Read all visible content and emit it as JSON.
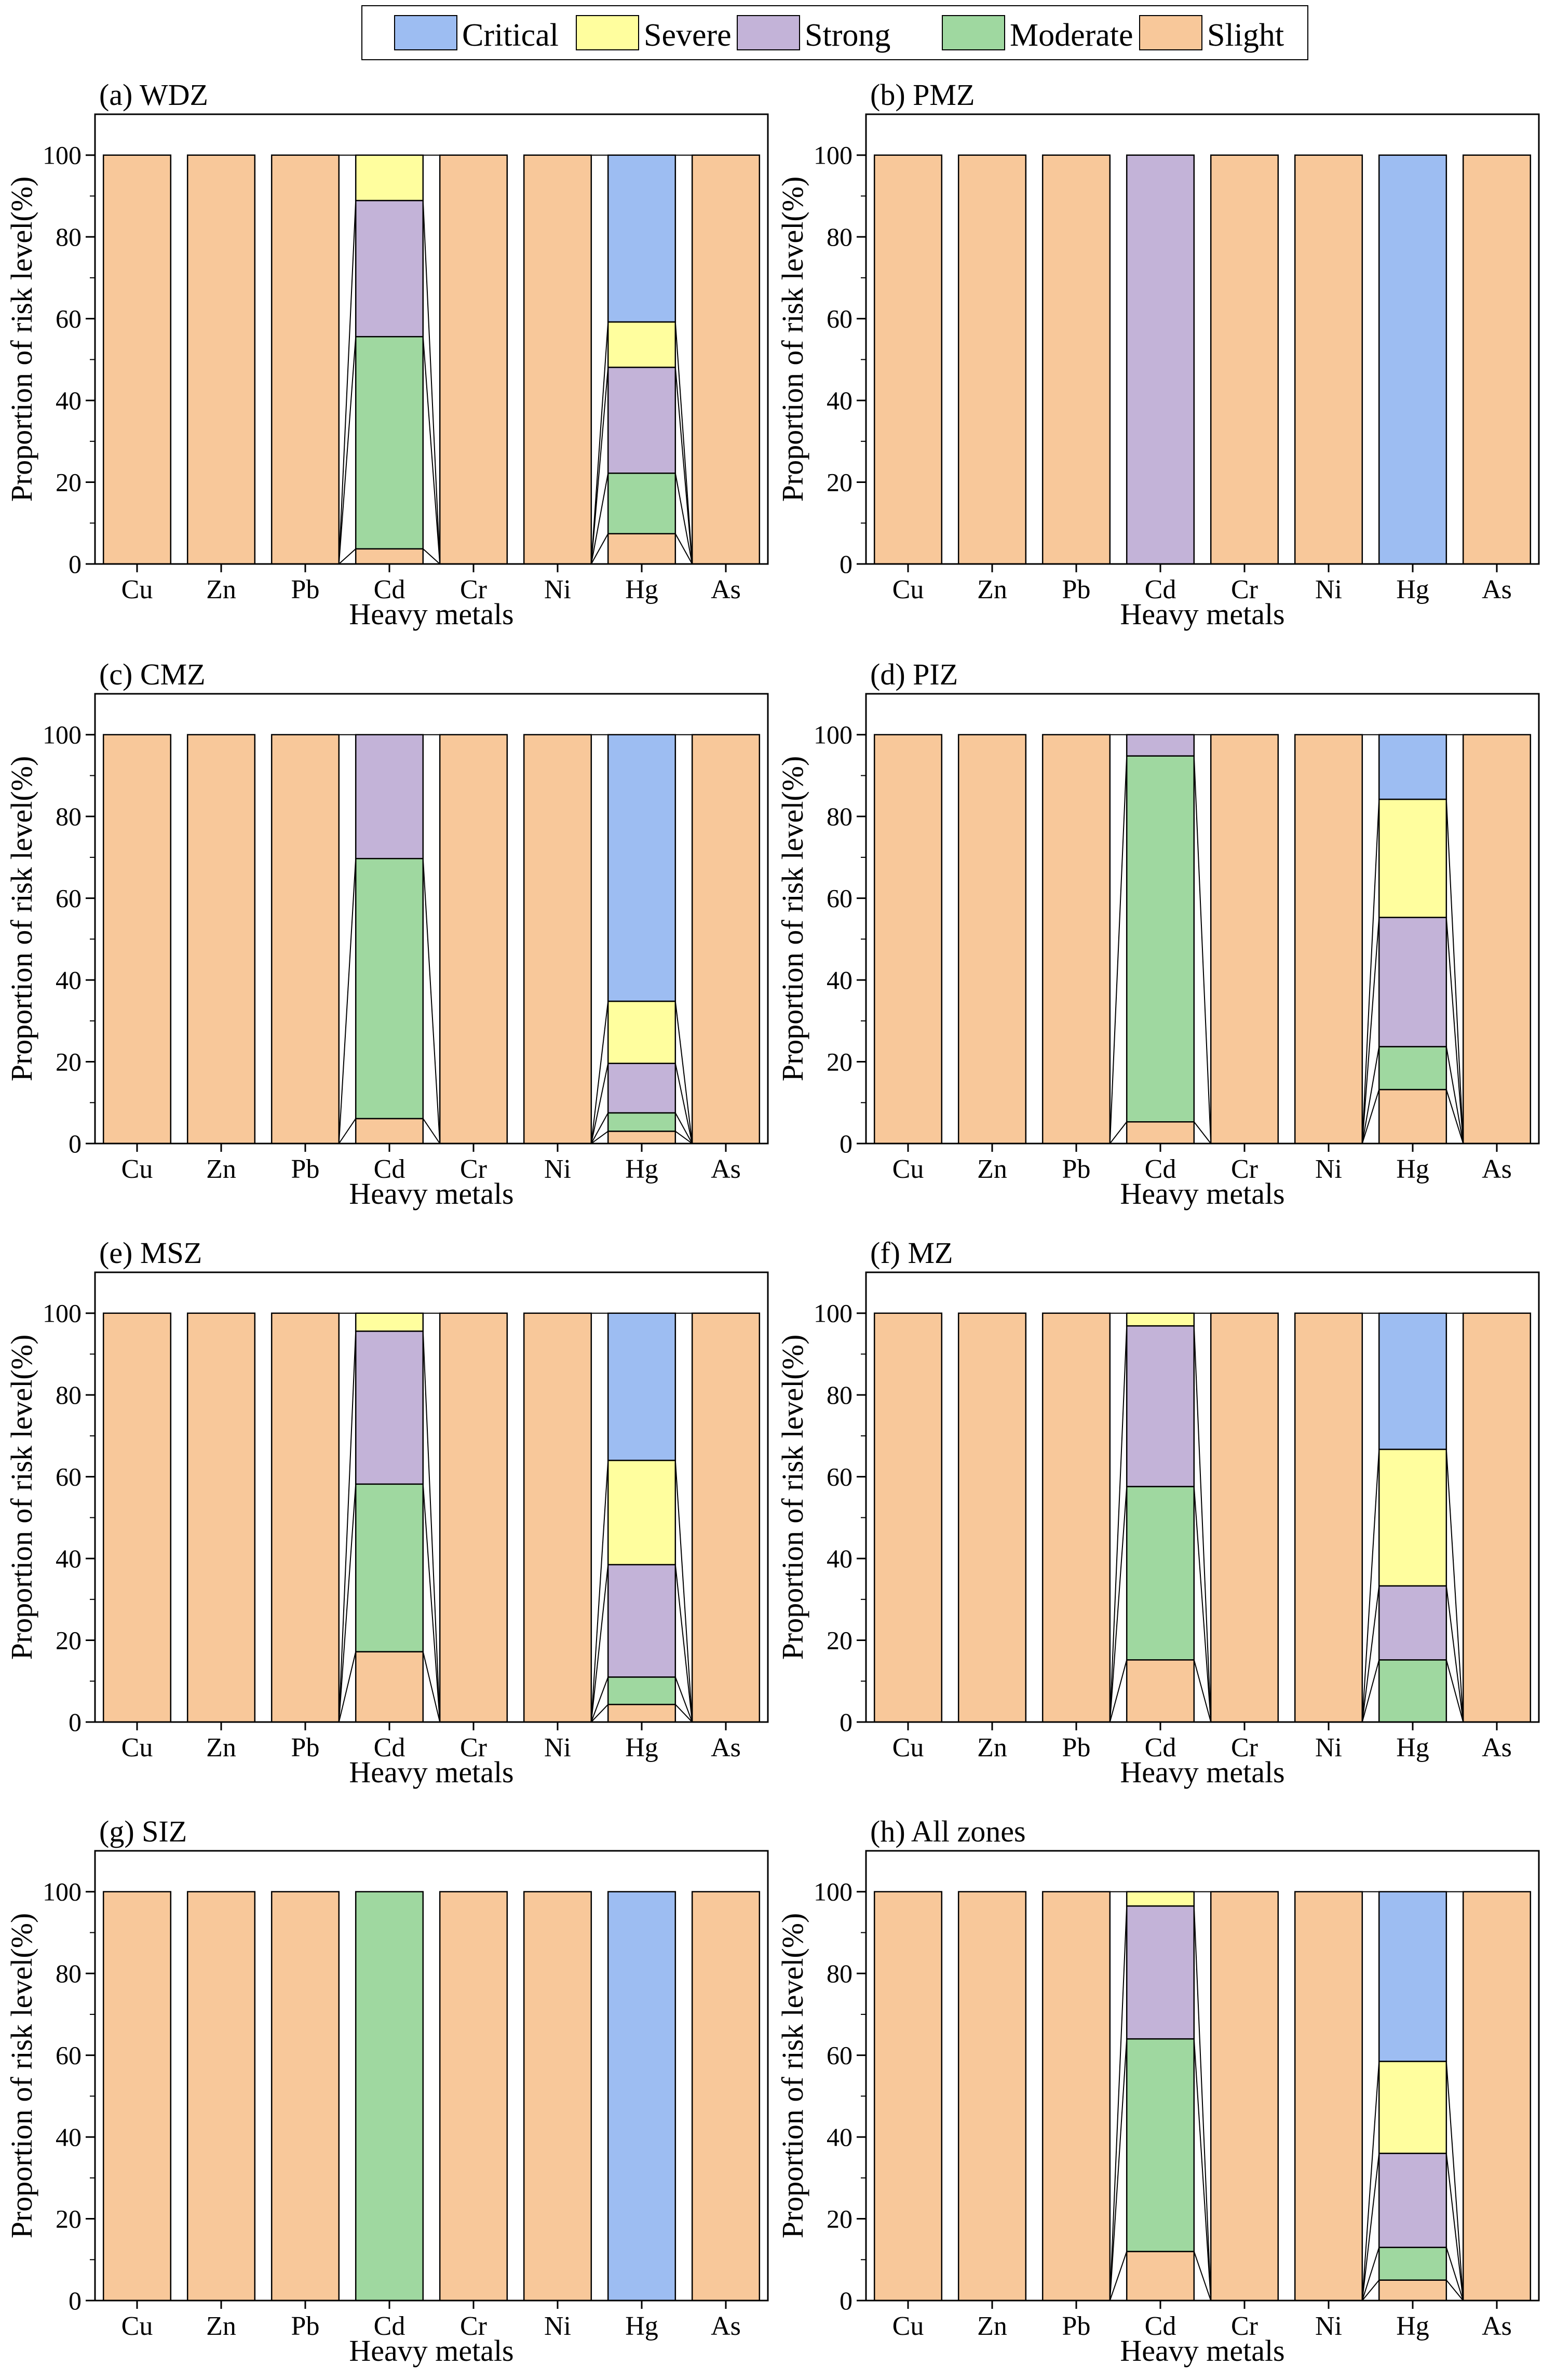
{
  "legend": [
    {
      "key": "Critical",
      "label": "Critical",
      "color": "#9DBDF2"
    },
    {
      "key": "Severe",
      "label": "Severe",
      "color": "#FFFE9E"
    },
    {
      "key": "Strong",
      "label": "Strong",
      "color": "#C3B3D8"
    },
    {
      "key": "Moderate",
      "label": "Moderate",
      "color": "#9FD8A0"
    },
    {
      "key": "Slight",
      "label": "Slight",
      "color": "#F8C89A"
    }
  ],
  "chart_data": [
    {
      "type": "bar",
      "stacked": true,
      "title": "(a) WDZ",
      "xlabel": "Heavy metals",
      "ylabel": "Proportion of risk level(%)",
      "ylim": [
        0,
        110
      ],
      "yticks": [
        0,
        20,
        40,
        60,
        80,
        100
      ],
      "categories": [
        "Cu",
        "Zn",
        "Pb",
        "Cd",
        "Cr",
        "Ni",
        "Hg",
        "As"
      ],
      "series": [
        {
          "name": "Slight",
          "values": [
            100,
            100,
            100,
            3.7,
            100,
            100,
            7.4,
            100
          ]
        },
        {
          "name": "Moderate",
          "values": [
            0,
            0,
            0,
            51.9,
            0,
            0,
            14.8,
            0
          ]
        },
        {
          "name": "Strong",
          "values": [
            0,
            0,
            0,
            33.3,
            0,
            0,
            25.9,
            0
          ]
        },
        {
          "name": "Severe",
          "values": [
            0,
            0,
            0,
            11.1,
            0,
            0,
            11.1,
            0
          ]
        },
        {
          "name": "Critical",
          "values": [
            0,
            0,
            0,
            0,
            0,
            0,
            40.8,
            0
          ]
        }
      ]
    },
    {
      "type": "bar",
      "stacked": true,
      "title": "(b) PMZ",
      "xlabel": "Heavy metals",
      "ylabel": "Proportion of risk level(%)",
      "ylim": [
        0,
        110
      ],
      "yticks": [
        0,
        20,
        40,
        60,
        80,
        100
      ],
      "categories": [
        "Cu",
        "Zn",
        "Pb",
        "Cd",
        "Cr",
        "Ni",
        "Hg",
        "As"
      ],
      "series": [
        {
          "name": "Slight",
          "values": [
            100,
            100,
            100,
            0,
            100,
            100,
            0,
            100
          ]
        },
        {
          "name": "Moderate",
          "values": [
            0,
            0,
            0,
            0,
            0,
            0,
            0,
            0
          ]
        },
        {
          "name": "Strong",
          "values": [
            0,
            0,
            0,
            100,
            0,
            0,
            0,
            0
          ]
        },
        {
          "name": "Severe",
          "values": [
            0,
            0,
            0,
            0,
            0,
            0,
            0,
            0
          ]
        },
        {
          "name": "Critical",
          "values": [
            0,
            0,
            0,
            0,
            0,
            0,
            100,
            0
          ]
        }
      ]
    },
    {
      "type": "bar",
      "stacked": true,
      "title": "(c) CMZ",
      "xlabel": "Heavy metals",
      "ylabel": "Proportion of risk level(%)",
      "ylim": [
        0,
        110
      ],
      "yticks": [
        0,
        20,
        40,
        60,
        80,
        100
      ],
      "categories": [
        "Cu",
        "Zn",
        "Pb",
        "Cd",
        "Cr",
        "Ni",
        "Hg",
        "As"
      ],
      "series": [
        {
          "name": "Slight",
          "values": [
            100,
            100,
            100,
            6.1,
            100,
            100,
            3.0,
            100
          ]
        },
        {
          "name": "Moderate",
          "values": [
            0,
            0,
            0,
            63.6,
            0,
            0,
            4.5,
            0
          ]
        },
        {
          "name": "Strong",
          "values": [
            0,
            0,
            0,
            30.3,
            0,
            0,
            12.1,
            0
          ]
        },
        {
          "name": "Severe",
          "values": [
            0,
            0,
            0,
            0,
            0,
            0,
            15.2,
            0
          ]
        },
        {
          "name": "Critical",
          "values": [
            0,
            0,
            0,
            0,
            0,
            0,
            65.2,
            0
          ]
        }
      ]
    },
    {
      "type": "bar",
      "stacked": true,
      "title": "(d) PIZ",
      "xlabel": "Heavy metals",
      "ylabel": "Proportion of risk level(%)",
      "ylim": [
        0,
        110
      ],
      "yticks": [
        0,
        20,
        40,
        60,
        80,
        100
      ],
      "categories": [
        "Cu",
        "Zn",
        "Pb",
        "Cd",
        "Cr",
        "Ni",
        "Hg",
        "As"
      ],
      "series": [
        {
          "name": "Slight",
          "values": [
            100,
            100,
            100,
            5.3,
            100,
            100,
            13.2,
            100
          ]
        },
        {
          "name": "Moderate",
          "values": [
            0,
            0,
            0,
            89.5,
            0,
            0,
            10.5,
            0
          ]
        },
        {
          "name": "Strong",
          "values": [
            0,
            0,
            0,
            5.2,
            0,
            0,
            31.6,
            0
          ]
        },
        {
          "name": "Severe",
          "values": [
            0,
            0,
            0,
            0,
            0,
            0,
            28.9,
            0
          ]
        },
        {
          "name": "Critical",
          "values": [
            0,
            0,
            0,
            0,
            0,
            0,
            15.8,
            0
          ]
        }
      ]
    },
    {
      "type": "bar",
      "stacked": true,
      "title": "(e) MSZ",
      "xlabel": "Heavy metals",
      "ylabel": "Proportion of risk level(%)",
      "ylim": [
        0,
        110
      ],
      "yticks": [
        0,
        20,
        40,
        60,
        80,
        100
      ],
      "categories": [
        "Cu",
        "Zn",
        "Pb",
        "Cd",
        "Cr",
        "Ni",
        "Hg",
        "As"
      ],
      "series": [
        {
          "name": "Slight",
          "values": [
            100,
            100,
            100,
            17.2,
            100,
            100,
            4.3,
            100
          ]
        },
        {
          "name": "Moderate",
          "values": [
            0,
            0,
            0,
            41.0,
            0,
            0,
            6.7,
            0
          ]
        },
        {
          "name": "Strong",
          "values": [
            0,
            0,
            0,
            37.4,
            0,
            0,
            27.5,
            0
          ]
        },
        {
          "name": "Severe",
          "values": [
            0,
            0,
            0,
            4.4,
            0,
            0,
            25.5,
            0
          ]
        },
        {
          "name": "Critical",
          "values": [
            0,
            0,
            0,
            0,
            0,
            0,
            36.0,
            0
          ]
        }
      ]
    },
    {
      "type": "bar",
      "stacked": true,
      "title": "(f) MZ",
      "xlabel": "Heavy metals",
      "ylabel": "Proportion of risk level(%)",
      "ylim": [
        0,
        110
      ],
      "yticks": [
        0,
        20,
        40,
        60,
        80,
        100
      ],
      "categories": [
        "Cu",
        "Zn",
        "Pb",
        "Cd",
        "Cr",
        "Ni",
        "Hg",
        "As"
      ],
      "series": [
        {
          "name": "Slight",
          "values": [
            100,
            100,
            100,
            15.2,
            100,
            100,
            0,
            100
          ]
        },
        {
          "name": "Moderate",
          "values": [
            0,
            0,
            0,
            42.4,
            0,
            0,
            15.2,
            0
          ]
        },
        {
          "name": "Strong",
          "values": [
            0,
            0,
            0,
            39.3,
            0,
            0,
            18.1,
            0
          ]
        },
        {
          "name": "Severe",
          "values": [
            0,
            0,
            0,
            3.1,
            0,
            0,
            33.4,
            0
          ]
        },
        {
          "name": "Critical",
          "values": [
            0,
            0,
            0,
            0,
            0,
            0,
            33.3,
            0
          ]
        }
      ]
    },
    {
      "type": "bar",
      "stacked": true,
      "title": "(g) SIZ",
      "xlabel": "Heavy metals",
      "ylabel": "Proportion of risk level(%)",
      "ylim": [
        0,
        110
      ],
      "yticks": [
        0,
        20,
        40,
        60,
        80,
        100
      ],
      "categories": [
        "Cu",
        "Zn",
        "Pb",
        "Cd",
        "Cr",
        "Ni",
        "Hg",
        "As"
      ],
      "series": [
        {
          "name": "Slight",
          "values": [
            100,
            100,
            100,
            0,
            100,
            100,
            0,
            100
          ]
        },
        {
          "name": "Moderate",
          "values": [
            0,
            0,
            0,
            100,
            0,
            0,
            0,
            0
          ]
        },
        {
          "name": "Strong",
          "values": [
            0,
            0,
            0,
            0,
            0,
            0,
            0,
            0
          ]
        },
        {
          "name": "Severe",
          "values": [
            0,
            0,
            0,
            0,
            0,
            0,
            0,
            0
          ]
        },
        {
          "name": "Critical",
          "values": [
            0,
            0,
            0,
            0,
            0,
            0,
            100,
            0
          ]
        }
      ]
    },
    {
      "type": "bar",
      "stacked": true,
      "title": "(h) All zones",
      "xlabel": "Heavy metals",
      "ylabel": "Proportion of risk level(%)",
      "ylim": [
        0,
        110
      ],
      "yticks": [
        0,
        20,
        40,
        60,
        80,
        100
      ],
      "categories": [
        "Cu",
        "Zn",
        "Pb",
        "Cd",
        "Cr",
        "Ni",
        "Hg",
        "As"
      ],
      "series": [
        {
          "name": "Slight",
          "values": [
            100,
            100,
            100,
            12.0,
            100,
            100,
            5.0,
            100
          ]
        },
        {
          "name": "Moderate",
          "values": [
            0,
            0,
            0,
            52.0,
            0,
            0,
            8.0,
            0
          ]
        },
        {
          "name": "Strong",
          "values": [
            0,
            0,
            0,
            32.5,
            0,
            0,
            23.0,
            0
          ]
        },
        {
          "name": "Severe",
          "values": [
            0,
            0,
            0,
            3.5,
            0,
            0,
            22.5,
            0
          ]
        },
        {
          "name": "Critical",
          "values": [
            0,
            0,
            0,
            0,
            0,
            0,
            41.5,
            0
          ]
        }
      ]
    }
  ]
}
